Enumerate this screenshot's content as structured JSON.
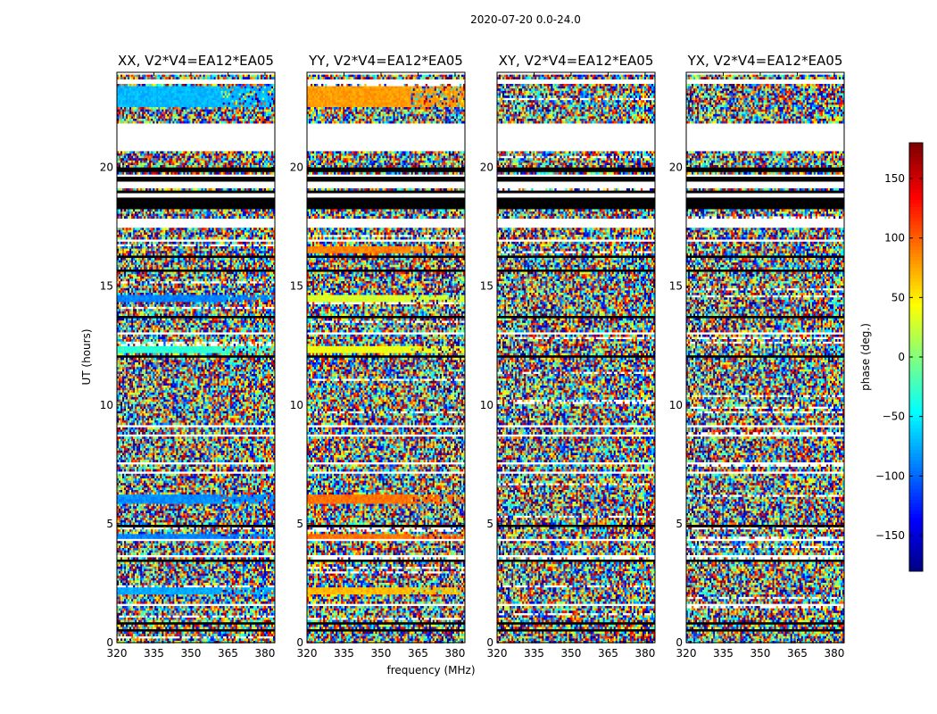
{
  "chart_data": {
    "type": "heatmap",
    "suptitle": "2020-07-20 0.0-24.0",
    "xlabel": "frequency (MHz)",
    "ylabel": "UT (hours)",
    "xlim": [
      320,
      384
    ],
    "ylim": [
      0,
      24
    ],
    "xticks": [
      320,
      335,
      350,
      365,
      380
    ],
    "yticks": [
      0,
      5,
      10,
      15,
      20
    ],
    "colormap": "jet",
    "colorbar": {
      "label": "phase (deg.)",
      "range": [
        -180,
        180
      ],
      "ticks": [
        150,
        100,
        50,
        0,
        -50,
        -100,
        -150
      ],
      "tick_labels": [
        "150",
        "100",
        "50",
        "0",
        "−50",
        "−100",
        "−150"
      ]
    },
    "panels": [
      {
        "title": "XX, V2*V4=EA12*EA05",
        "coherent_bands": [
          {
            "t0": 22.5,
            "t1": 23.4,
            "phase": -70
          },
          {
            "t0": 14.3,
            "t1": 14.6,
            "phase": -90
          },
          {
            "t0": 12.2,
            "t1": 12.5,
            "phase": -30
          },
          {
            "t0": 5.85,
            "t1": 6.2,
            "phase": -85
          },
          {
            "t0": 4.4,
            "t1": 4.6,
            "phase": -90
          },
          {
            "t0": 2.0,
            "t1": 2.3,
            "phase": -75
          }
        ]
      },
      {
        "title": "YY, V2*V4=EA12*EA05",
        "coherent_bands": [
          {
            "t0": 22.5,
            "t1": 23.4,
            "phase": 80
          },
          {
            "t0": 16.4,
            "t1": 16.7,
            "phase": 90
          },
          {
            "t0": 14.3,
            "t1": 14.6,
            "phase": 30
          },
          {
            "t0": 12.2,
            "t1": 12.5,
            "phase": 40
          },
          {
            "t0": 5.85,
            "t1": 6.2,
            "phase": 95
          },
          {
            "t0": 4.4,
            "t1": 4.6,
            "phase": 95
          },
          {
            "t0": 2.0,
            "t1": 2.3,
            "phase": 70
          }
        ]
      },
      {
        "title": "XY, V2*V4=EA12*EA05",
        "coherent_bands": []
      },
      {
        "title": "YX, V2*V4=EA12*EA05",
        "coherent_bands": []
      }
    ],
    "flagged_white_rows": [
      [
        20.7,
        21.9
      ],
      [
        21.5,
        21.6
      ],
      [
        1.5,
        1.6
      ],
      [
        3.6,
        3.7
      ],
      [
        4.3,
        4.35
      ],
      [
        5.15,
        5.2
      ],
      [
        5.8,
        5.85
      ],
      [
        7.1,
        7.2
      ],
      [
        7.5,
        7.55
      ],
      [
        8.7,
        8.75
      ],
      [
        9.1,
        9.15
      ],
      [
        9.5,
        9.55
      ],
      [
        10.0,
        10.05
      ],
      [
        11.0,
        11.05
      ],
      [
        12.55,
        12.6
      ],
      [
        13.0,
        13.05
      ],
      [
        16.9,
        17.0
      ],
      [
        17.5,
        17.8
      ],
      [
        18.7,
        18.9
      ],
      [
        19.1,
        19.4
      ],
      [
        19.6,
        19.7
      ],
      [
        23.5,
        23.7
      ],
      [
        23.9,
        24.0
      ]
    ],
    "flagged_black_rows": [
      [
        18.2,
        18.7
      ],
      [
        19.4,
        19.6
      ],
      [
        19.8,
        20.0
      ],
      [
        18.9,
        19.05
      ],
      [
        12.0,
        12.1
      ],
      [
        13.6,
        13.7
      ],
      [
        15.6,
        15.7
      ],
      [
        16.2,
        16.3
      ],
      [
        4.9,
        5.0
      ],
      [
        3.4,
        3.5
      ],
      [
        1.9,
        1.95
      ],
      [
        0.5,
        0.55
      ],
      [
        0.8,
        0.85
      ]
    ]
  }
}
